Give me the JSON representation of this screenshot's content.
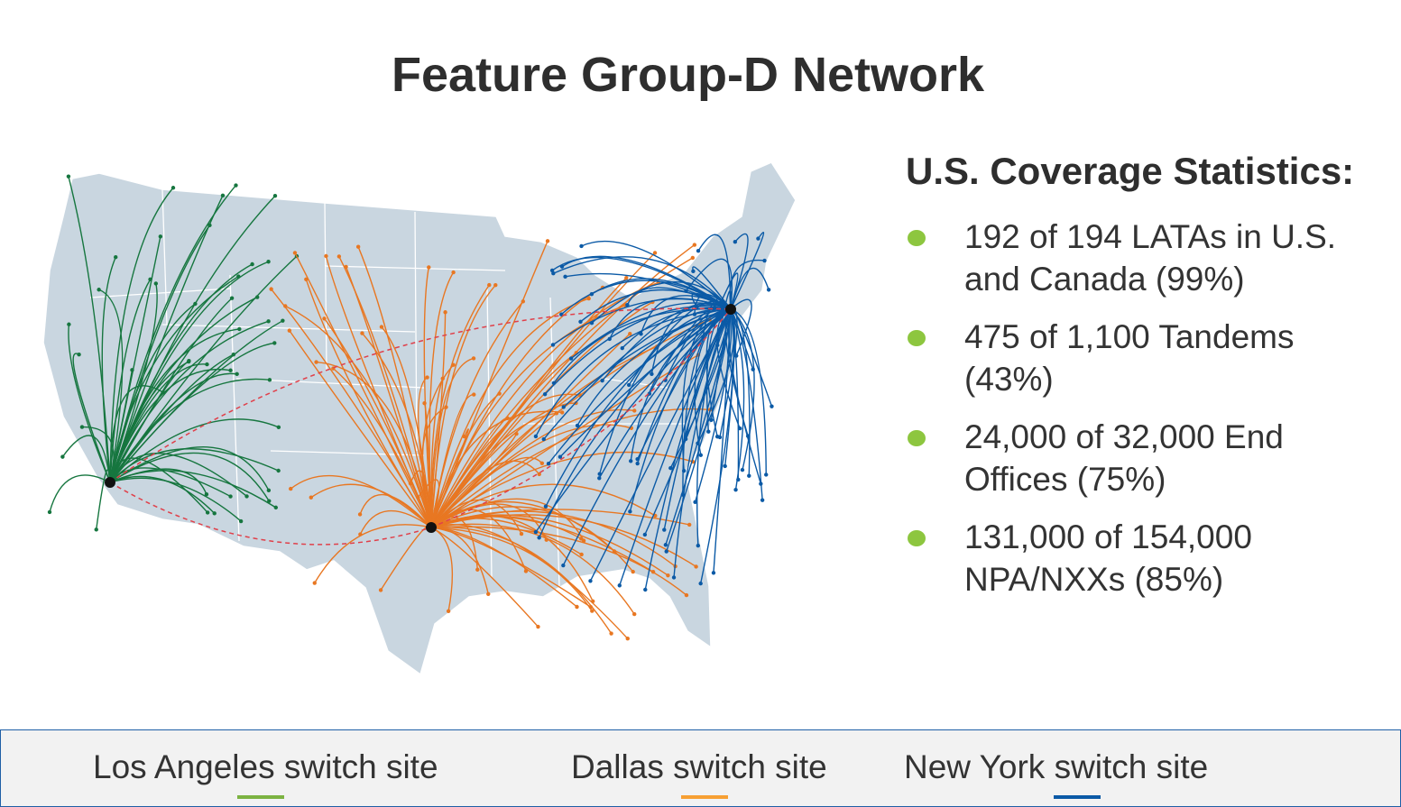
{
  "title": "Feature Group-D Network",
  "stats": {
    "heading": "U.S. Coverage Statistics:",
    "items": [
      {
        "text": "192 of 194 LATAs in U.S. and Canada (99%)"
      },
      {
        "text": "475 of 1,100 Tandems (43%)"
      },
      {
        "text": "24,000 of 32,000 End Offices (75%)"
      },
      {
        "text": "131,000 of 154,000 NPA/NXXs (85%)"
      }
    ],
    "bullet_color": "#8dc63f"
  },
  "legend": [
    {
      "label": "Los Angeles switch site",
      "color": "#7cb342"
    },
    {
      "label": "Dallas switch site",
      "color": "#f7a033"
    },
    {
      "label": "New York switch site",
      "color": "#0b5aa6"
    }
  ],
  "map": {
    "land_color": "#c9d6e0",
    "interconnect_color": "#e0404a",
    "hubs": [
      {
        "site": "Los Angeles",
        "route_color": "#16763f"
      },
      {
        "site": "Dallas",
        "route_color": "#e87722"
      },
      {
        "site": "New York",
        "route_color": "#0b5aa6"
      }
    ]
  }
}
